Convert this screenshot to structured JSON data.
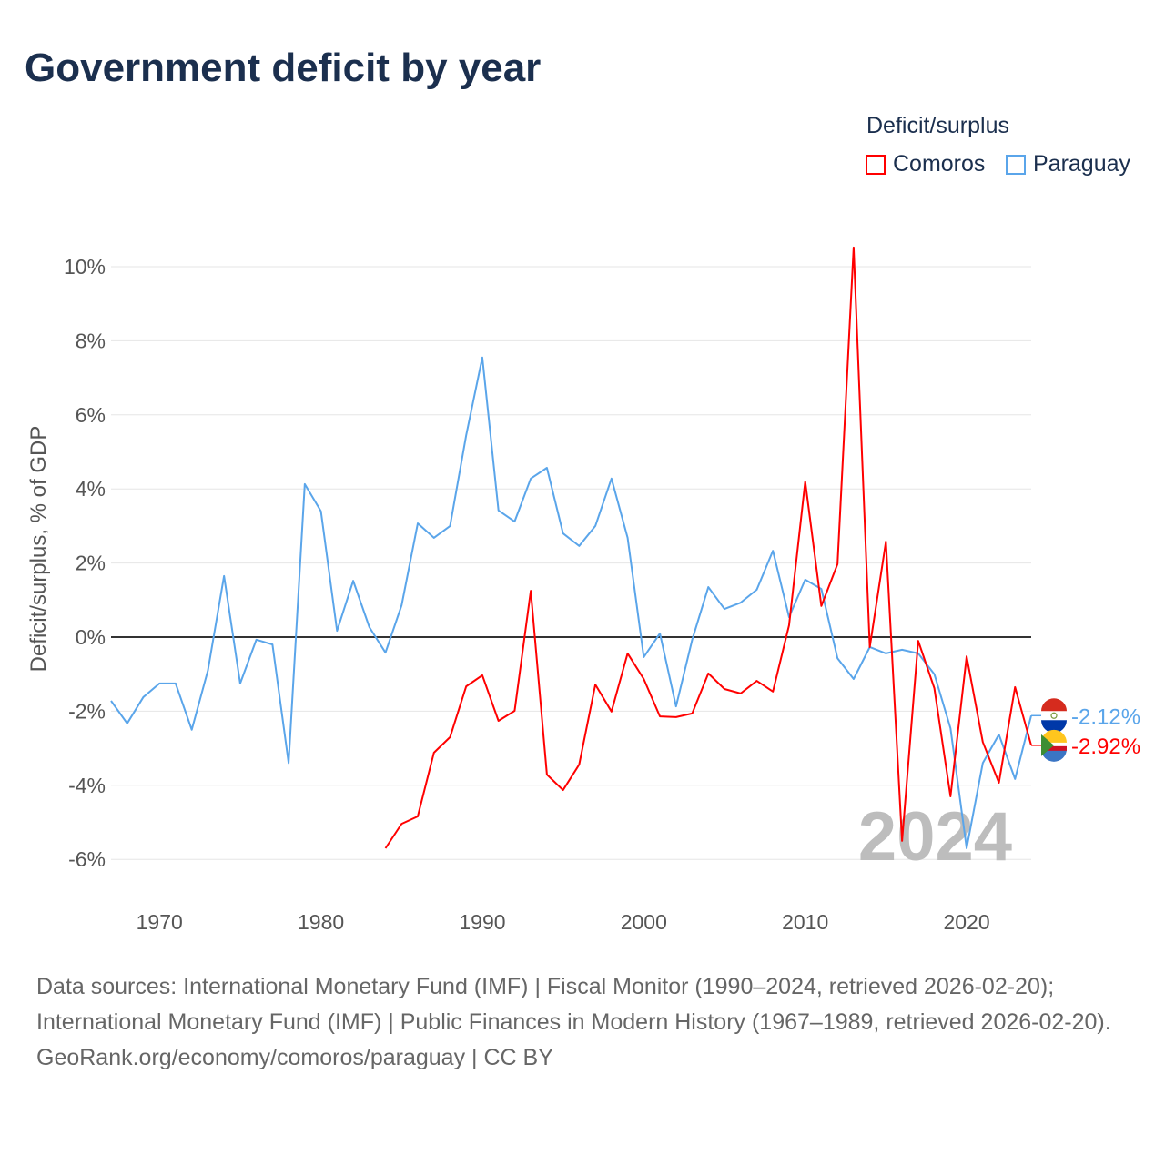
{
  "title": "Government deficit by year",
  "legend": {
    "title": "Deficit/surplus",
    "items": [
      {
        "label": "Comoros",
        "color": "#ff0000"
      },
      {
        "label": "Paraguay",
        "color": "#5aa5ea"
      }
    ]
  },
  "sources": {
    "line1": "Data sources: International Monetary Fund (IMF) | Fiscal Monitor (1990–2024, retrieved 2026-02-20); International Monetary Fund (IMF) | Public Finances in Modern History (1967–1989, retrieved 2026-02-20).",
    "line2": "GeoRank.org/economy/comoros/paraguay | CC BY"
  },
  "chart_data": {
    "type": "line",
    "title": "Government deficit by year",
    "ylabel": "Deficit/surplus, % of GDP",
    "xlabel": "",
    "year_label": "2024",
    "xlim": [
      1967,
      2024
    ],
    "ylim": [
      -6.6,
      10.6
    ],
    "yticks": [
      -6,
      -4,
      -2,
      0,
      2,
      4,
      6,
      8,
      10
    ],
    "ytick_labels": [
      "-6%",
      "-4%",
      "-2%",
      "0%",
      "2%",
      "4%",
      "6%",
      "8%",
      "10%"
    ],
    "xticks": [
      1970,
      1980,
      1990,
      2000,
      2010,
      2020
    ],
    "xtick_labels": [
      "1970",
      "1980",
      "1990",
      "2000",
      "2010",
      "2020"
    ],
    "series": [
      {
        "name": "Paraguay",
        "color": "#5aa5ea",
        "end_label": "-2.12%",
        "x_start": 1967,
        "values": [
          -1.72,
          -2.33,
          -1.62,
          -1.25,
          -1.25,
          -2.5,
          -0.9,
          1.65,
          -1.25,
          -0.07,
          -0.2,
          -3.4,
          4.13,
          3.4,
          0.17,
          1.52,
          0.27,
          -0.42,
          0.86,
          3.07,
          2.68,
          3.0,
          5.45,
          7.55,
          3.42,
          3.12,
          4.28,
          4.57,
          2.8,
          2.46,
          3.0,
          4.28,
          2.68,
          -0.54,
          0.1,
          -1.87,
          -0.07,
          1.35,
          0.76,
          0.93,
          1.28,
          2.33,
          0.54,
          1.55,
          1.3,
          -0.57,
          -1.13,
          -0.27,
          -0.44,
          -0.34,
          -0.44,
          -1.0,
          -2.46,
          -5.7,
          -3.4,
          -2.63,
          -3.83,
          -2.12
        ]
      },
      {
        "name": "Comoros",
        "color": "#ff0000",
        "end_label": "-2.92%",
        "x_start": 1984,
        "values": [
          -5.7,
          -5.04,
          -4.84,
          -3.12,
          -2.7,
          -1.33,
          -1.03,
          -2.26,
          -1.99,
          1.25,
          -3.71,
          -4.13,
          -3.44,
          -1.28,
          -2.01,
          -0.44,
          -1.13,
          -2.14,
          -2.16,
          -2.06,
          -0.98,
          -1.4,
          -1.52,
          -1.18,
          -1.47,
          0.32,
          4.2,
          0.84,
          1.97,
          10.52,
          -0.27,
          2.58,
          -5.5,
          -0.1,
          -1.38,
          -4.3,
          -0.52,
          -2.83,
          -3.93,
          -1.35,
          -2.92
        ]
      }
    ]
  }
}
